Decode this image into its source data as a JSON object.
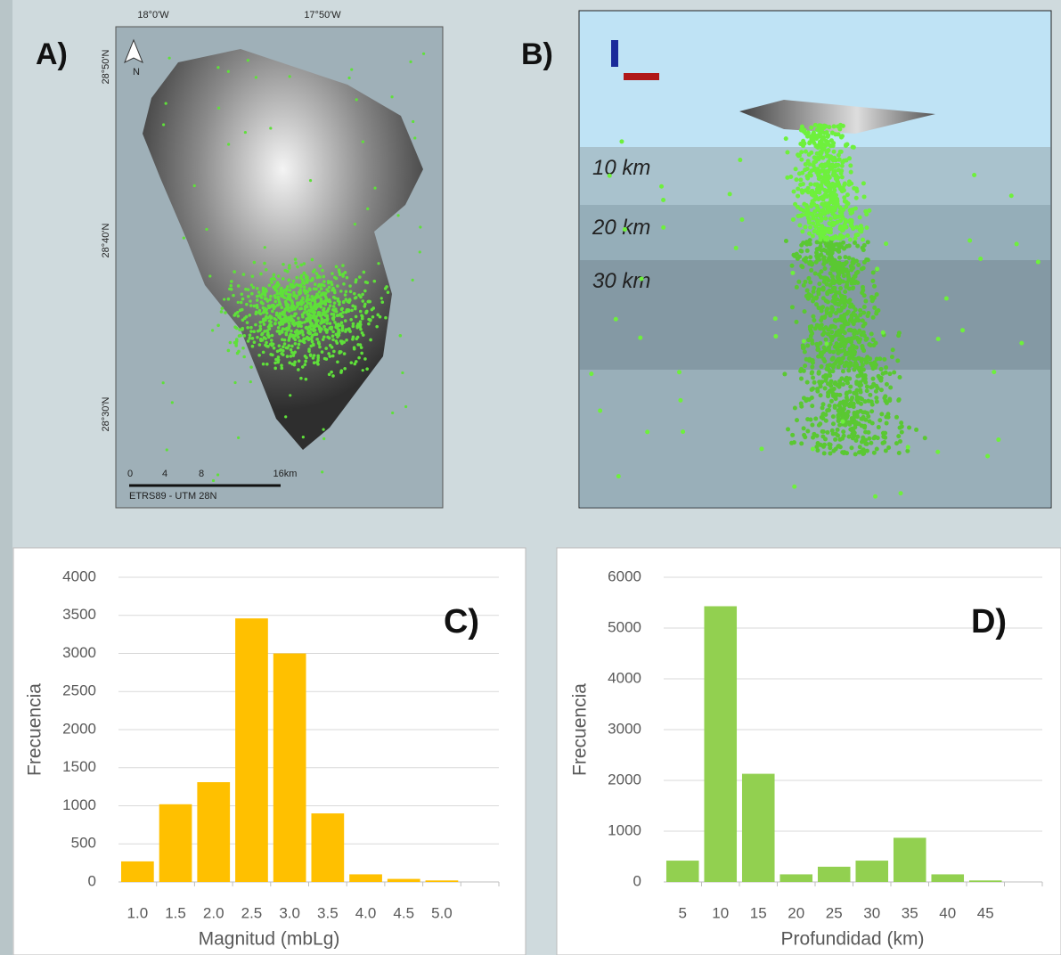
{
  "map_panel": {
    "label": "A)",
    "lon_labels": [
      "18°0'W",
      "17°50'W"
    ],
    "lat_labels": [
      "28°50'N",
      "28°40'N",
      "28°30'N"
    ],
    "north": "N",
    "scale_labels": [
      "0",
      "4",
      "8",
      "16km"
    ],
    "crs": "ETRS89 - UTM 28N"
  },
  "section_panel": {
    "label": "B)",
    "depth_labels": [
      "10 km",
      "20 km",
      "30 km"
    ]
  },
  "chart_data": [
    {
      "type": "bar",
      "annotation": "C)",
      "x_label": "Magnitud (mbLg)",
      "y_label": "Frecuencia",
      "color": "#ffc000",
      "categories": [
        "1.0",
        "1.5",
        "2.0",
        "2.5",
        "3.0",
        "3.5",
        "4.0",
        "4.5",
        "5.0",
        null
      ],
      "values": [
        270,
        1020,
        1310,
        3460,
        3000,
        900,
        100,
        40,
        20,
        0
      ],
      "ylim": [
        0,
        4000
      ],
      "yticks": [
        0,
        500,
        1000,
        1500,
        2000,
        2500,
        3000,
        3500,
        4000
      ],
      "grid": true
    },
    {
      "type": "bar",
      "annotation": "D)",
      "x_label": "Profundidad (km)",
      "y_label": "Frecuencia",
      "color": "#92d050",
      "categories": [
        "5",
        "10",
        "15",
        "20",
        "25",
        "30",
        "35",
        "40",
        "45",
        null
      ],
      "values": [
        420,
        5430,
        2130,
        150,
        300,
        420,
        870,
        150,
        30,
        0
      ],
      "ylim": [
        0,
        6000
      ],
      "yticks": [
        0,
        1000,
        2000,
        3000,
        4000,
        5000,
        6000
      ],
      "grid": true
    }
  ]
}
